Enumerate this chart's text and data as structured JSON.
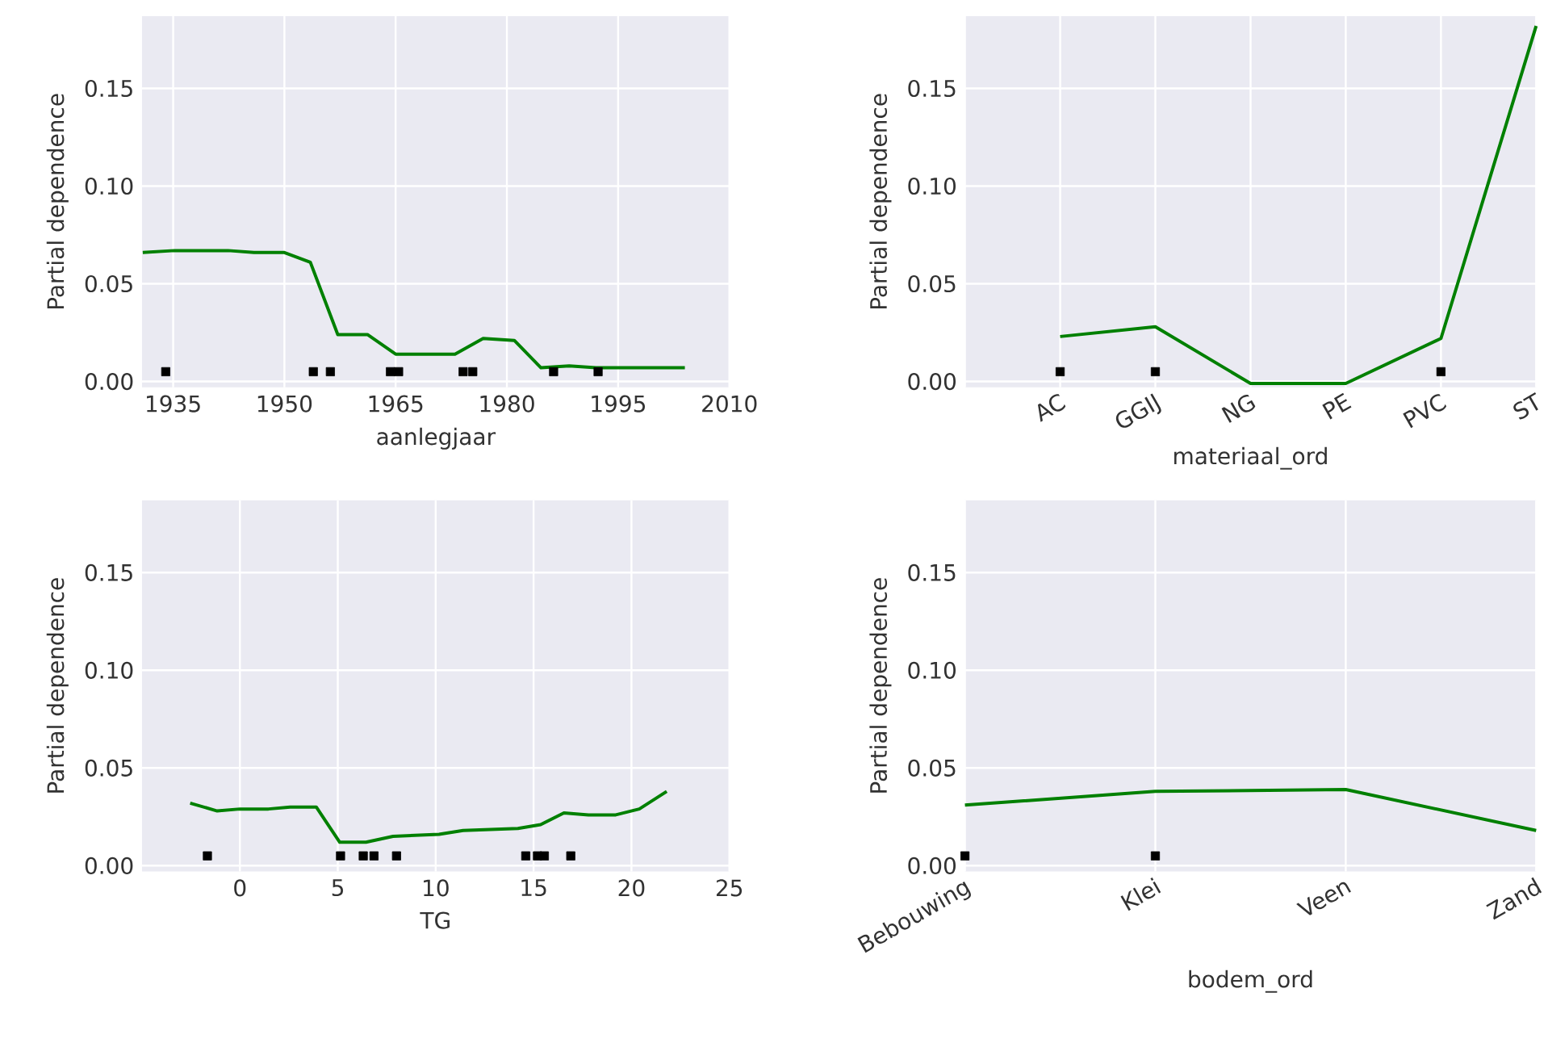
{
  "chart_data": [
    {
      "type": "line",
      "xlabel": "aanlegjaar",
      "ylabel": "Partial dependence",
      "xlim": [
        1930.8,
        2010
      ],
      "xticks": [
        1935,
        1950,
        1965,
        1980,
        1995,
        2010
      ],
      "ylim": [
        -0.003,
        0.187
      ],
      "yticks": [
        {
          "value": 0,
          "label": "0.00"
        },
        {
          "value": 0.05,
          "label": "0.05"
        },
        {
          "value": 0.1,
          "label": "0.10"
        },
        {
          "value": 0.15,
          "label": "0.15"
        }
      ],
      "grid": true,
      "series": [
        {
          "color": "#008000",
          "x": [
            1930.9,
            1935.2,
            1942.4,
            1945.9,
            1950,
            1953.5,
            1957.2,
            1961.2,
            1965,
            1973,
            1976.8,
            1981,
            1984.6,
            1988.4,
            1992,
            2004
          ],
          "values": [
            0.066,
            0.067,
            0.067,
            0.066,
            0.066,
            0.061,
            0.024,
            0.024,
            0.014,
            0.014,
            0.022,
            0.021,
            0.007,
            0.008,
            0.007,
            0.007
          ]
        },
        {
          "type": "scatter",
          "marker": "square",
          "color": "#000000",
          "x": [
            1934,
            1953.9,
            1956.2,
            1964.3,
            1965.4,
            1974.1,
            1975.4,
            1986.3,
            1992.3
          ],
          "values": [
            0.005,
            0.005,
            0.005,
            0.005,
            0.005,
            0.005,
            0.005,
            0.005,
            0.005
          ]
        }
      ]
    },
    {
      "type": "line",
      "xlabel": "materiaal_ord",
      "ylabel": "Partial dependence",
      "categories": [
        null,
        "AC",
        "GGIJ",
        "NG",
        "PE",
        "PVC",
        "ST"
      ],
      "ylim": [
        -0.003,
        0.187
      ],
      "yticks": [
        {
          "value": 0,
          "label": "0.00"
        },
        {
          "value": 0.05,
          "label": "0.05"
        },
        {
          "value": 0.1,
          "label": "0.10"
        },
        {
          "value": 0.15,
          "label": "0.15"
        }
      ],
      "grid": true,
      "series": [
        {
          "color": "#008000",
          "values": [
            null,
            0.023,
            0.028,
            -0.001,
            -0.001,
            0.022,
            0.182
          ]
        },
        {
          "type": "scatter",
          "marker": "square",
          "color": "#000000",
          "values": [
            null,
            0.005,
            0.005,
            null,
            null,
            0.005,
            null
          ]
        }
      ]
    },
    {
      "type": "line",
      "xlabel": "TG",
      "ylabel": "Partial dependence",
      "xlim": [
        -5,
        25
      ],
      "xticks": [
        0,
        5,
        10,
        15,
        20,
        25
      ],
      "ylim": [
        -0.003,
        0.187
      ],
      "yticks": [
        {
          "value": 0,
          "label": "0.00"
        },
        {
          "value": 0.05,
          "label": "0.05"
        },
        {
          "value": 0.1,
          "label": "0.10"
        },
        {
          "value": 0.15,
          "label": "0.15"
        }
      ],
      "grid": true,
      "series": [
        {
          "color": "#008000",
          "x": [
            -2.54,
            -1.16,
            0,
            1.46,
            2.57,
            3.9,
            5.1,
            6.44,
            7.82,
            10.17,
            11.4,
            14.2,
            15.36,
            16.55,
            17.8,
            19.2,
            20.4,
            21.8
          ],
          "values": [
            0.032,
            0.028,
            0.029,
            0.029,
            0.03,
            0.03,
            0.012,
            0.012,
            0.015,
            0.016,
            0.018,
            0.019,
            0.021,
            0.027,
            0.026,
            0.026,
            0.029,
            0.038
          ]
        },
        {
          "type": "scatter",
          "marker": "square",
          "color": "#000000",
          "x": [
            -1.66,
            5.14,
            6.3,
            6.85,
            8.0,
            14.6,
            15.2,
            15.55,
            16.9
          ],
          "values": [
            0.005,
            0.005,
            0.005,
            0.005,
            0.005,
            0.005,
            0.005,
            0.005,
            0.005
          ]
        }
      ]
    },
    {
      "type": "line",
      "xlabel": "bodem_ord",
      "ylabel": "Partial dependence",
      "categories": [
        "Bebouwing",
        "Klei",
        "Veen",
        "Zand"
      ],
      "ylim": [
        -0.003,
        0.187
      ],
      "yticks": [
        {
          "value": 0,
          "label": "0.00"
        },
        {
          "value": 0.05,
          "label": "0.05"
        },
        {
          "value": 0.1,
          "label": "0.10"
        },
        {
          "value": 0.15,
          "label": "0.15"
        }
      ],
      "grid": true,
      "series": [
        {
          "color": "#008000",
          "values": [
            0.031,
            0.038,
            0.039,
            0.018
          ]
        },
        {
          "type": "scatter",
          "marker": "square",
          "color": "#000000",
          "values": [
            0.005,
            0.005,
            null,
            null
          ]
        }
      ]
    }
  ]
}
